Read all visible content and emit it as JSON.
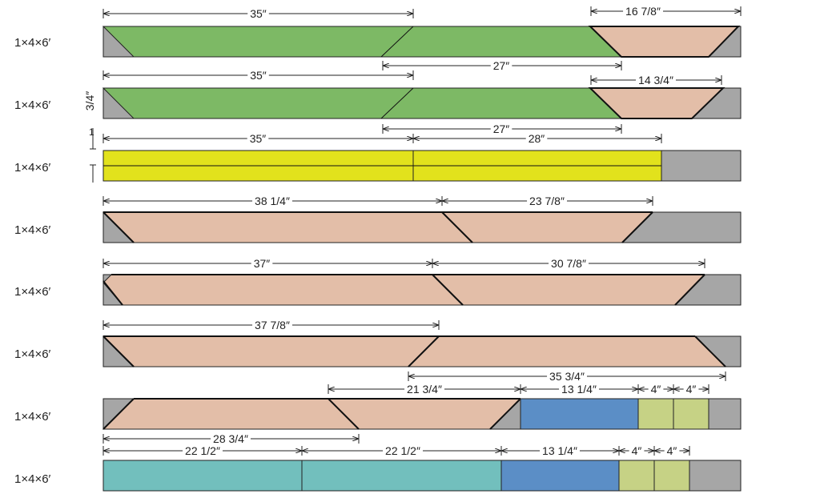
{
  "colors": {
    "scrap": "#a6a6a6",
    "green": "#7db965",
    "tan": "#e3bea8",
    "yellow": "#e2e21c",
    "blue": "#5b8ec6",
    "lime": "#c6d285",
    "teal": "#72bfbd"
  },
  "thickness_label": "3/4″",
  "width_label": "1",
  "boards": [
    {
      "label": "1×4×6′",
      "pieces": [
        {
          "kind": "scrap"
        },
        {
          "kind": "green",
          "name": "green-piece"
        },
        {
          "kind": "tan",
          "name": "tan-trapezoid"
        }
      ],
      "dims": [
        {
          "text": "35″"
        },
        {
          "text": "16  7/8″"
        },
        {
          "text": "27″"
        }
      ]
    },
    {
      "label": "1×4×6′",
      "pieces": [
        {
          "kind": "green",
          "name": "green-piece"
        },
        {
          "kind": "tan",
          "name": "tan-trapezoid"
        }
      ],
      "dims": [
        {
          "text": "35″"
        },
        {
          "text": "14  3/4″"
        },
        {
          "text": "27″"
        }
      ]
    },
    {
      "label": "1×4×6′",
      "pieces": [
        {
          "kind": "yellow",
          "name": "yellow-strip"
        },
        {
          "kind": "yellow",
          "name": "yellow-strip"
        }
      ],
      "dims": [
        {
          "text": "35″"
        },
        {
          "text": "28″"
        }
      ]
    },
    {
      "label": "1×4×6′",
      "pieces": [
        {
          "kind": "tan"
        },
        {
          "kind": "tan"
        }
      ],
      "dims": [
        {
          "text": "38  1/4″"
        },
        {
          "text": "23  7/8″"
        }
      ]
    },
    {
      "label": "1×4×6′",
      "pieces": [
        {
          "kind": "tan"
        },
        {
          "kind": "tan"
        }
      ],
      "dims": [
        {
          "text": "37″"
        },
        {
          "text": "30  7/8″"
        }
      ]
    },
    {
      "label": "1×4×6′",
      "pieces": [
        {
          "kind": "tan"
        },
        {
          "kind": "tan"
        }
      ],
      "dims": [
        {
          "text": "37  7/8″"
        },
        {
          "text": "35  3/4″"
        }
      ]
    },
    {
      "label": "1×4×6′",
      "pieces": [
        {
          "kind": "tan"
        },
        {
          "kind": "tan"
        },
        {
          "kind": "blue"
        },
        {
          "kind": "lime"
        },
        {
          "kind": "lime"
        }
      ],
      "dims": [
        {
          "text": "21  3/4″"
        },
        {
          "text": "13  1/4″"
        },
        {
          "text": "4″"
        },
        {
          "text": "4″"
        },
        {
          "text": "28  3/4″"
        }
      ]
    },
    {
      "label": "1×4×6′",
      "pieces": [
        {
          "kind": "teal"
        },
        {
          "kind": "teal"
        },
        {
          "kind": "blue"
        },
        {
          "kind": "lime"
        },
        {
          "kind": "lime"
        }
      ],
      "dims": [
        {
          "text": "22  1/2″"
        },
        {
          "text": "22  1/2″"
        },
        {
          "text": "13  1/4″"
        },
        {
          "text": "4″"
        },
        {
          "text": "4″"
        }
      ]
    }
  ]
}
